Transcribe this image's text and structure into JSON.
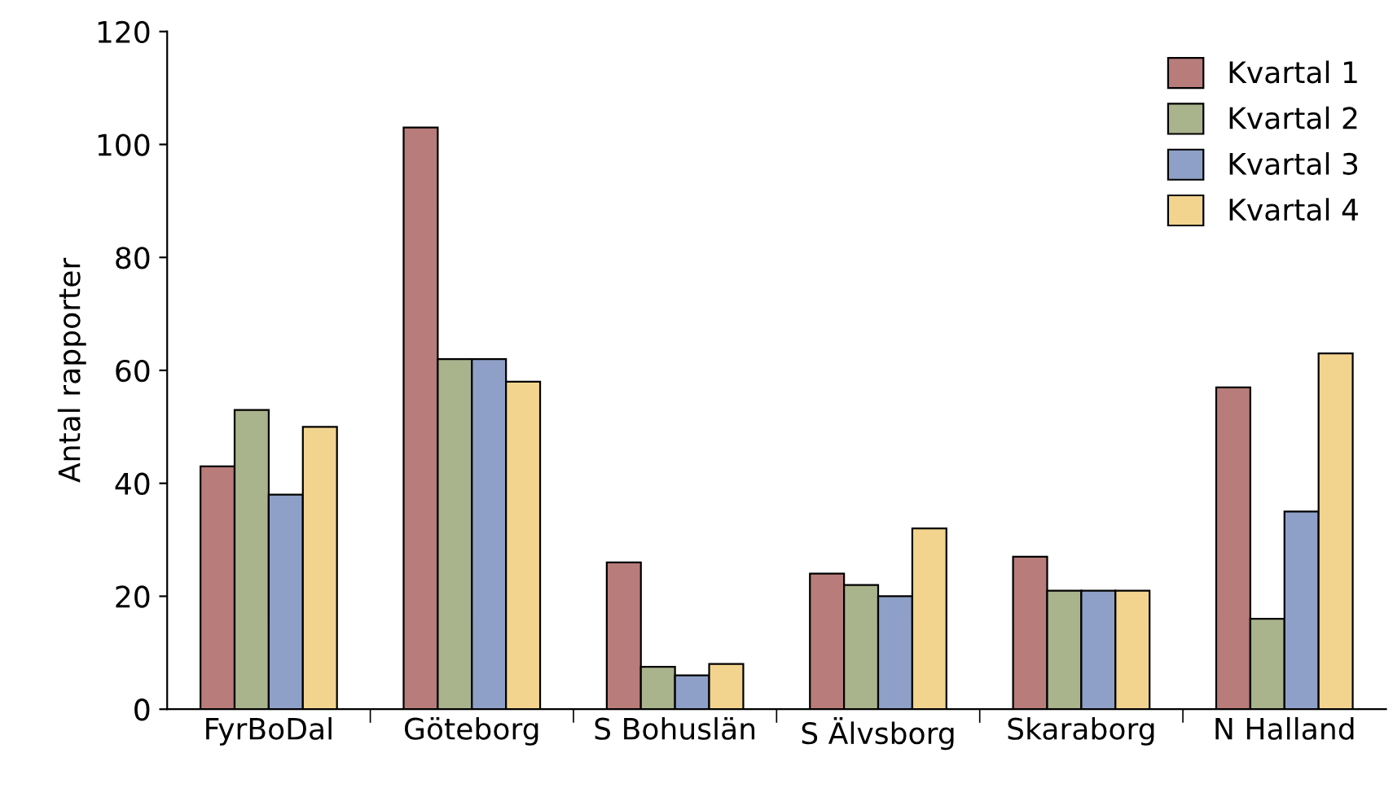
{
  "chart_data": {
    "type": "bar",
    "ylabel": "Antal rapporter",
    "categories": [
      "FyrBoDal",
      "Göteborg",
      "S Bohuslän",
      "S Älvsborg",
      "Skaraborg",
      "N Halland"
    ],
    "series": [
      {
        "name": "Kvartal 1",
        "color": "#b87c7a",
        "values": [
          43,
          103,
          26,
          24,
          27,
          57
        ]
      },
      {
        "name": "Kvartal 2",
        "color": "#a9b38c",
        "values": [
          53,
          62,
          7.5,
          22,
          21,
          16
        ]
      },
      {
        "name": "Kvartal 3",
        "color": "#8fa0c8",
        "values": [
          38,
          62,
          6,
          20,
          21,
          35
        ]
      },
      {
        "name": "Kvartal 4",
        "color": "#f3d48f",
        "values": [
          50,
          58,
          8,
          32,
          21,
          63
        ]
      }
    ],
    "ylim": [
      0,
      120
    ],
    "yticks": [
      0,
      20,
      40,
      60,
      80,
      100,
      120
    ],
    "grid": false,
    "legend": "top right"
  }
}
